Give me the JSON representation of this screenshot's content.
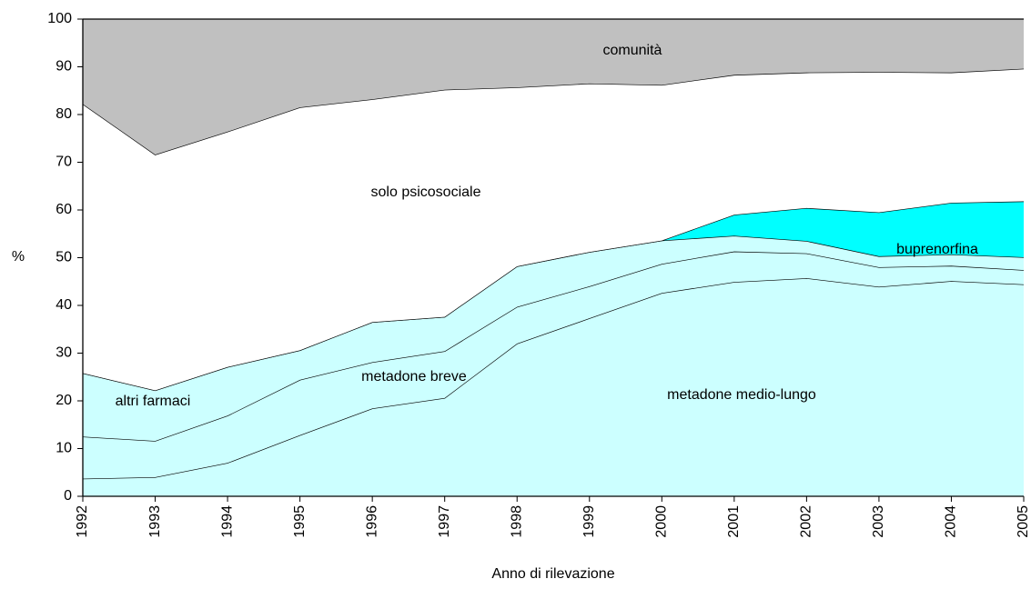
{
  "chart_data": {
    "type": "stacked-area",
    "x_label": "Anno di rilevazione",
    "y_label": "%",
    "categories": [
      "1992",
      "1993",
      "1994",
      "1995",
      "1996",
      "1997",
      "1998",
      "1999",
      "2000",
      "2001",
      "2002",
      "2003",
      "2004",
      "2005"
    ],
    "series": [
      {
        "name": "metadone medio-lungo",
        "color": "#ccffff",
        "values": [
          3.7,
          4,
          7,
          12.8,
          18.4,
          20.6,
          32,
          37.3,
          42.6,
          44.9,
          45.7,
          43.9,
          45.1,
          44.4
        ]
      },
      {
        "name": "metadone breve",
        "color": "#ccffff",
        "values": [
          8.8,
          7.6,
          9.9,
          11.6,
          9.7,
          9.8,
          7.7,
          6.7,
          6.1,
          6.4,
          5.2,
          4.1,
          3.2,
          3.0
        ]
      },
      {
        "name": "altri farmaci",
        "color": "#ccffff",
        "values": [
          13.3,
          10.6,
          10.2,
          6.2,
          8.4,
          7.2,
          8.5,
          7.2,
          4.9,
          3.3,
          2.6,
          2.3,
          2.4,
          2.7
        ]
      },
      {
        "name": "buprenorfina",
        "color": "#00ffff",
        "values": [
          0,
          0,
          0,
          0,
          0,
          0,
          0,
          0,
          0,
          4.4,
          6.9,
          9.2,
          10.8,
          11.7
        ]
      },
      {
        "name": "solo psicosociale",
        "color": "#ffffff",
        "values": [
          56.4,
          49.4,
          49.3,
          50.9,
          46.7,
          47.6,
          37.5,
          35.3,
          32.6,
          29.3,
          28.4,
          29.4,
          27.3,
          27.8
        ]
      },
      {
        "name": "comunità",
        "color": "#c0c0c0",
        "values": [
          17.8,
          28.4,
          23.6,
          18.5,
          16.8,
          14.8,
          14.3,
          13.5,
          13.8,
          11.7,
          11.2,
          11.1,
          11.2,
          10.4
        ]
      }
    ],
    "ylim": [
      0,
      100
    ],
    "yticks": [
      0,
      10,
      20,
      30,
      40,
      50,
      60,
      70,
      80,
      90,
      100
    ]
  }
}
